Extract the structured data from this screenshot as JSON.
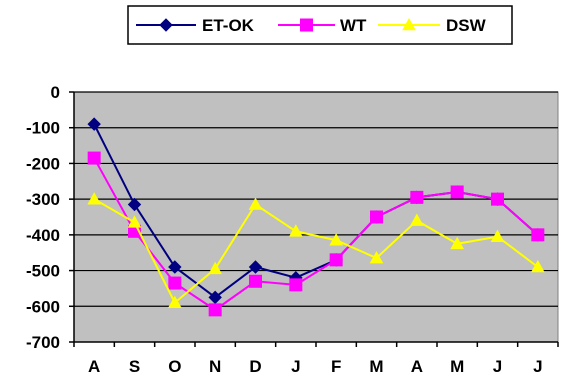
{
  "chart_data": {
    "type": "line",
    "categories": [
      "A",
      "S",
      "O",
      "N",
      "D",
      "J",
      "F",
      "M",
      "A",
      "M",
      "J",
      "J"
    ],
    "ylim": [
      -700,
      0
    ],
    "yticks": [
      0,
      -100,
      -200,
      -300,
      -400,
      -500,
      -600,
      -700
    ],
    "grid": true,
    "legend_position": "top",
    "plot_background": "#c0c0c0",
    "series": [
      {
        "name": "ET-OK",
        "color": "#000080",
        "marker": "diamond",
        "values": [
          -90,
          -315,
          -490,
          -575,
          -490,
          -520,
          -470,
          -350,
          -295,
          -280,
          -300,
          -400
        ]
      },
      {
        "name": "WT",
        "color": "#ff00ff",
        "marker": "square",
        "values": [
          -185,
          -390,
          -535,
          -610,
          -530,
          -540,
          -470,
          -350,
          -295,
          -280,
          -300,
          -400
        ]
      },
      {
        "name": "DSW",
        "color": "#ffff00",
        "marker": "triangle",
        "values": [
          -300,
          -365,
          -590,
          -495,
          -315,
          -390,
          -415,
          -465,
          -360,
          -425,
          -405,
          -490
        ]
      }
    ]
  }
}
